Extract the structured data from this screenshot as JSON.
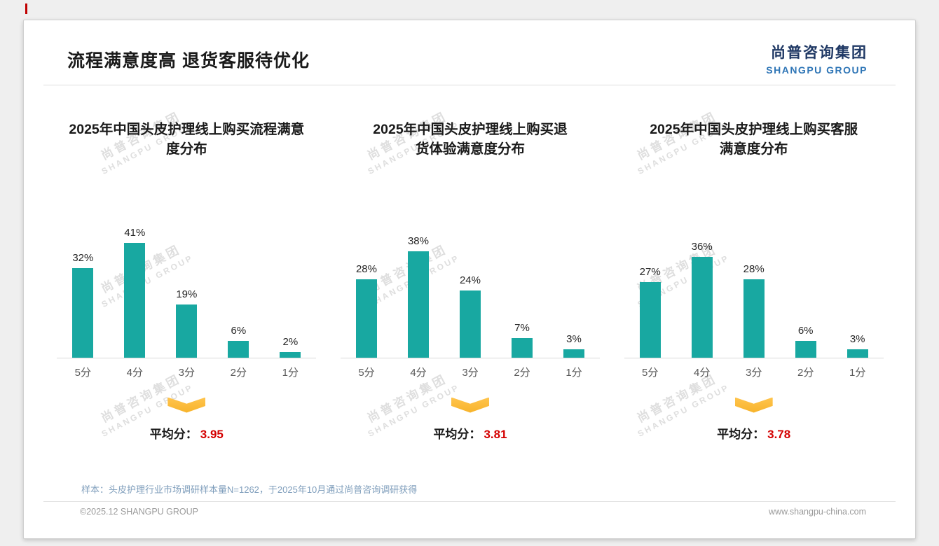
{
  "colors": {
    "bar": "#18A8A1",
    "accent_red": "#C00000",
    "average_red": "#D40000",
    "arrow_yellow": "#FFC44D",
    "logo_navy": "#1F3864",
    "logo_blue": "#2E75B6",
    "footnote_blue": "#7E9DBB"
  },
  "header": {
    "title": "流程满意度高 退货客服待优化",
    "logo_cn": "尚普咨询集团",
    "logo_en": "SHANGPU GROUP"
  },
  "watermark": {
    "line1": "尚普咨询集团",
    "line2": "SHANGPU GROUP"
  },
  "chart_data": [
    {
      "type": "bar",
      "title": "2025年中国头皮护理线上购买流程满意\n度分布",
      "categories": [
        "5分",
        "4分",
        "3分",
        "2分",
        "1分"
      ],
      "values": [
        32,
        41,
        19,
        6,
        2
      ],
      "value_labels": [
        "32%",
        "41%",
        "19%",
        "6%",
        "2%"
      ],
      "ylim": [
        0,
        45
      ],
      "grid": false,
      "legend": "none",
      "average_label": "平均分：",
      "average": "3.95"
    },
    {
      "type": "bar",
      "title": "2025年中国头皮护理线上购买退\n货体验满意度分布",
      "categories": [
        "5分",
        "4分",
        "3分",
        "2分",
        "1分"
      ],
      "values": [
        28,
        38,
        24,
        7,
        3
      ],
      "value_labels": [
        "28%",
        "38%",
        "24%",
        "7%",
        "3%"
      ],
      "ylim": [
        0,
        45
      ],
      "grid": false,
      "legend": "none",
      "average_label": "平均分：",
      "average": "3.81"
    },
    {
      "type": "bar",
      "title": "2025年中国头皮护理线上购买客服\n满意度分布",
      "categories": [
        "5分",
        "4分",
        "3分",
        "2分",
        "1分"
      ],
      "values": [
        27,
        36,
        28,
        6,
        3
      ],
      "value_labels": [
        "27%",
        "36%",
        "28%",
        "6%",
        "3%"
      ],
      "ylim": [
        0,
        45
      ],
      "grid": false,
      "legend": "none",
      "average_label": "平均分：",
      "average": "3.78"
    }
  ],
  "footer": {
    "note": "样本：头皮护理行业市场调研样本量N=1262，于2025年10月通过尚普咨询调研获得",
    "left": "©2025.12 SHANGPU GROUP",
    "right": "www.shangpu-china.com"
  }
}
